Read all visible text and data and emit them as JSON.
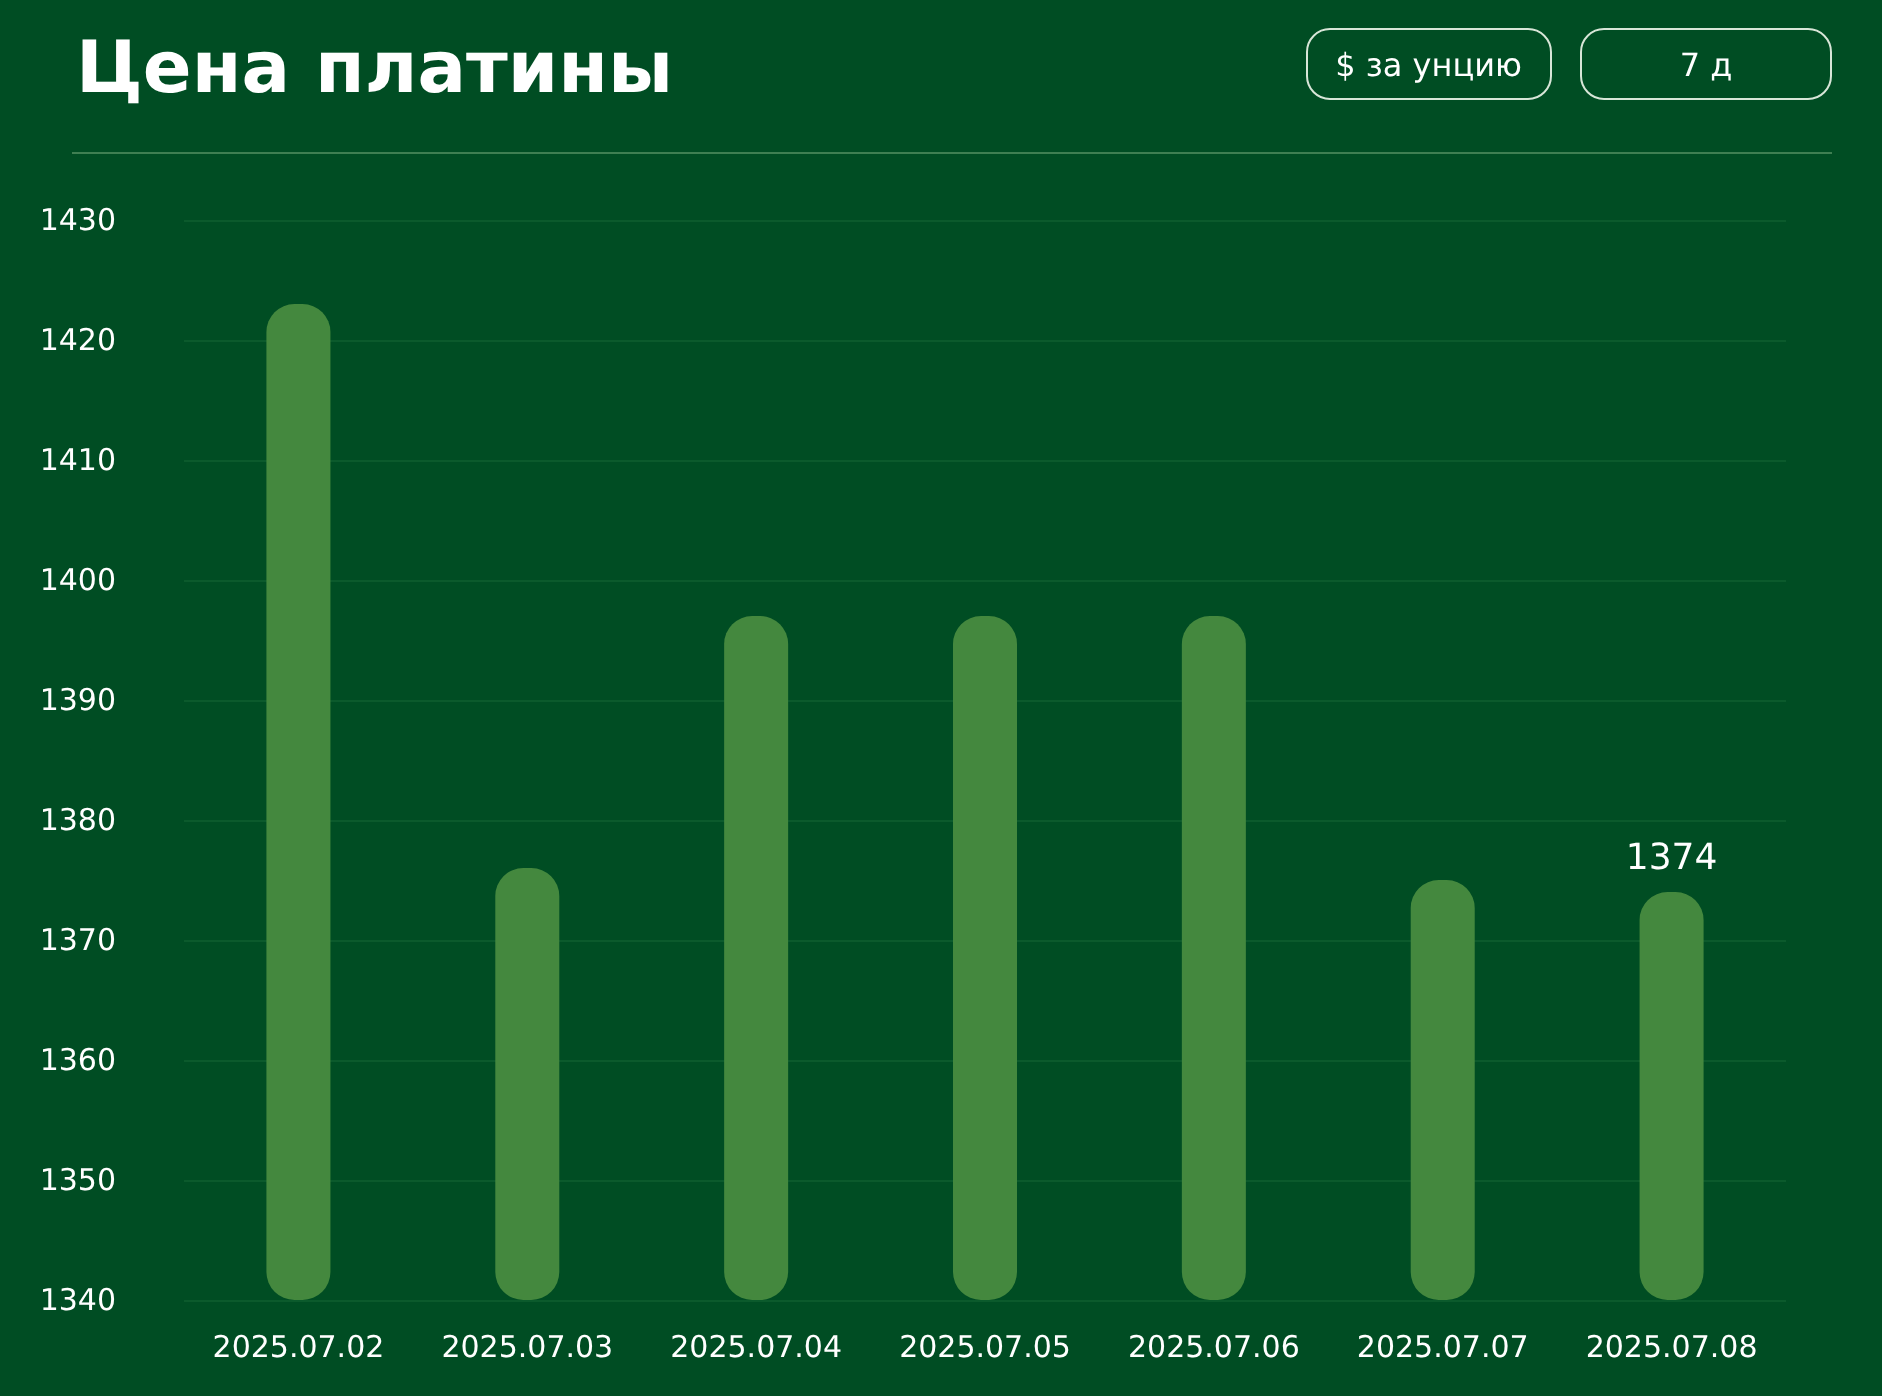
{
  "chart_data": {
    "type": "bar",
    "title": "Цена платины",
    "annotations": [
      "$ за унцию",
      "7 д"
    ],
    "categories": [
      "2025.07.02",
      "2025.07.03",
      "2025.07.04",
      "2025.07.05",
      "2025.07.06",
      "2025.07.07",
      "2025.07.08"
    ],
    "values": [
      1423,
      1376,
      1397,
      1397,
      1397,
      1375,
      1374
    ],
    "value_labels": [
      null,
      null,
      null,
      null,
      null,
      null,
      "1374"
    ],
    "color": "#44883e",
    "ylim": [
      1340,
      1430
    ],
    "yticks": [
      1340,
      1350,
      1360,
      1370,
      1380,
      1390,
      1400,
      1410,
      1420,
      1430
    ],
    "grid": "y"
  }
}
